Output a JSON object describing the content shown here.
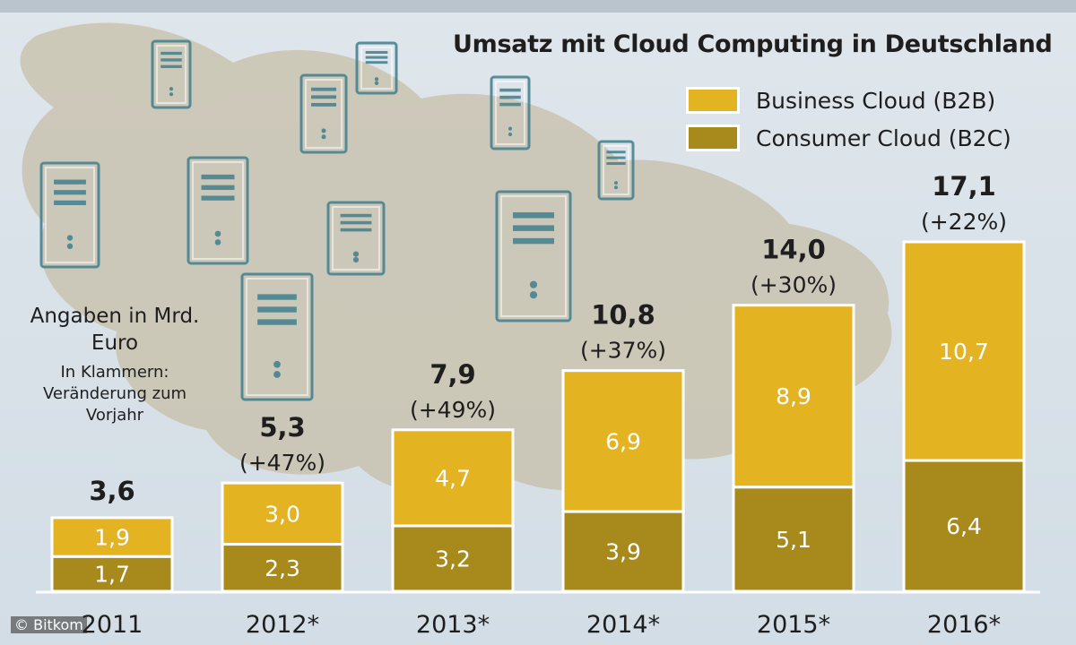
{
  "title": "Umsatz mit Cloud Computing in Deutschland",
  "note": {
    "unit": "Angaben in Mrd. Euro",
    "explanation": "In Klammern: Veränderung zum Vorjahr"
  },
  "credit": "© Bitkom",
  "colors": {
    "b2b": "#e3b322",
    "b2c": "#a8891c",
    "background": "#dfe6ec",
    "cloud": "#c7bfa8",
    "server": "#3f7e8c"
  },
  "chart_data": {
    "type": "bar",
    "stacked": true,
    "categories": [
      "2011",
      "2012*",
      "2013*",
      "2014*",
      "2015*",
      "2016*"
    ],
    "series": [
      {
        "name": "Consumer Cloud (B2C)",
        "values": [
          1.7,
          2.3,
          3.2,
          3.9,
          5.1,
          6.4
        ],
        "labels": [
          "1,7",
          "2,3",
          "3,2",
          "3,9",
          "5,1",
          "6,4"
        ]
      },
      {
        "name": "Business Cloud (B2B)",
        "values": [
          1.9,
          3.0,
          4.7,
          6.9,
          8.9,
          10.7
        ],
        "labels": [
          "1,9",
          "3,0",
          "4,7",
          "6,9",
          "8,9",
          "10,7"
        ]
      }
    ],
    "totals": [
      3.6,
      5.3,
      7.9,
      10.8,
      14.0,
      17.1
    ],
    "total_labels": [
      "3,6",
      "5,3",
      "7,9",
      "10,8",
      "14,0",
      "17,1"
    ],
    "changes": [
      "",
      "(+47%)",
      "(+49%)",
      "(+37%)",
      "(+30%)",
      "(+22%)"
    ],
    "legend": [
      "Business Cloud (B2B)",
      "Consumer Cloud (B2C)"
    ],
    "legend_position": "top-right",
    "ylim": [
      0,
      17.1
    ],
    "grid": false
  }
}
